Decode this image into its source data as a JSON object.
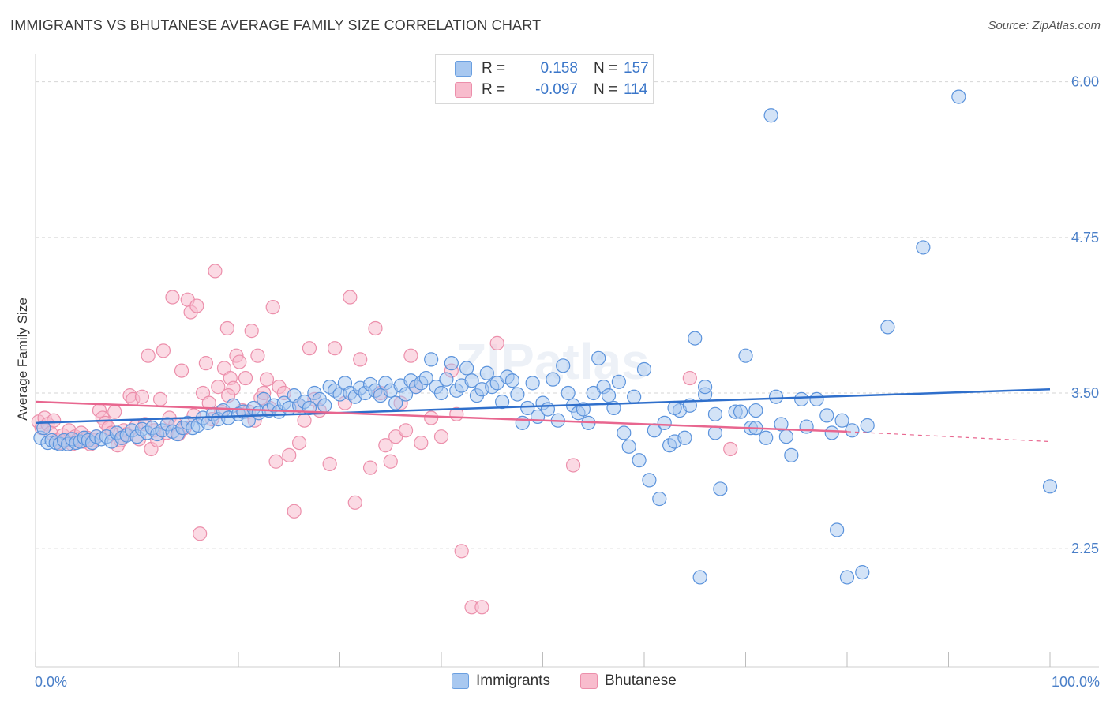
{
  "header": {
    "title": "IMMIGRANTS VS BHUTANESE AVERAGE FAMILY SIZE CORRELATION CHART",
    "source": "Source: ZipAtlas.com"
  },
  "legend": {
    "rows": [
      {
        "r_label": "R =",
        "r_value": "0.158",
        "n_label": "N =",
        "n_value": "157"
      },
      {
        "r_label": "R =",
        "r_value": "-0.097",
        "n_label": "N =",
        "n_value": "114"
      }
    ],
    "bottom": [
      "Immigrants",
      "Bhutanese"
    ]
  },
  "colors": {
    "immigrants_fill": "#a8c8f0",
    "immigrants_stroke": "#5b93dc",
    "immigrants_line": "#2f6fcb",
    "bhutanese_fill": "#f8bccd",
    "bhutanese_stroke": "#ec8fab",
    "bhutanese_line": "#e8668f",
    "tick_color": "#4a7fc8"
  },
  "chart_data": {
    "type": "scatter",
    "title": "IMMIGRANTS VS BHUTANESE AVERAGE FAMILY SIZE CORRELATION CHART",
    "xlabel": "",
    "ylabel": "Average Family Size",
    "xlim": [
      0,
      100
    ],
    "ylim": [
      1.3,
      6.15
    ],
    "x_tick_labels": [
      "0.0%",
      "100.0%"
    ],
    "y_ticks": [
      2.25,
      3.5,
      4.75,
      6.0
    ],
    "y_tick_labels": [
      "2.25",
      "3.50",
      "4.75",
      "6.00"
    ],
    "grid": "horizontal dashed",
    "watermark": "ZIPatlas",
    "series": [
      {
        "name": "Immigrants",
        "r": 0.158,
        "n": 157,
        "trend": {
          "x": [
            0,
            100
          ],
          "y": [
            3.26,
            3.53
          ]
        },
        "points": [
          [
            0.5,
            3.14
          ],
          [
            0.8,
            3.22
          ],
          [
            1.2,
            3.1
          ],
          [
            1.6,
            3.12
          ],
          [
            2.0,
            3.1
          ],
          [
            2.4,
            3.09
          ],
          [
            2.8,
            3.12
          ],
          [
            3.2,
            3.09
          ],
          [
            3.6,
            3.13
          ],
          [
            4.0,
            3.1
          ],
          [
            4.4,
            3.11
          ],
          [
            4.8,
            3.14
          ],
          [
            5.2,
            3.12
          ],
          [
            5.6,
            3.1
          ],
          [
            6.0,
            3.15
          ],
          [
            6.5,
            3.13
          ],
          [
            7.0,
            3.15
          ],
          [
            7.5,
            3.11
          ],
          [
            8.0,
            3.18
          ],
          [
            8.5,
            3.14
          ],
          [
            9.0,
            3.16
          ],
          [
            9.5,
            3.2
          ],
          [
            10.0,
            3.15
          ],
          [
            10.5,
            3.21
          ],
          [
            11.0,
            3.18
          ],
          [
            11.5,
            3.22
          ],
          [
            12.0,
            3.17
          ],
          [
            12.5,
            3.2
          ],
          [
            13.0,
            3.25
          ],
          [
            13.5,
            3.19
          ],
          [
            14.0,
            3.17
          ],
          [
            14.5,
            3.22
          ],
          [
            15.0,
            3.26
          ],
          [
            15.5,
            3.22
          ],
          [
            16.0,
            3.24
          ],
          [
            16.5,
            3.3
          ],
          [
            17.0,
            3.26
          ],
          [
            17.5,
            3.33
          ],
          [
            18.0,
            3.29
          ],
          [
            18.5,
            3.36
          ],
          [
            19.0,
            3.3
          ],
          [
            19.5,
            3.4
          ],
          [
            20.0,
            3.33
          ],
          [
            20.5,
            3.35
          ],
          [
            21.0,
            3.28
          ],
          [
            21.5,
            3.38
          ],
          [
            22.0,
            3.34
          ],
          [
            22.5,
            3.45
          ],
          [
            23.0,
            3.36
          ],
          [
            23.5,
            3.4
          ],
          [
            24.0,
            3.35
          ],
          [
            24.5,
            3.42
          ],
          [
            25.0,
            3.38
          ],
          [
            25.5,
            3.48
          ],
          [
            26.0,
            3.4
          ],
          [
            26.5,
            3.43
          ],
          [
            27.0,
            3.38
          ],
          [
            27.5,
            3.5
          ],
          [
            28.0,
            3.45
          ],
          [
            28.5,
            3.4
          ],
          [
            29.0,
            3.55
          ],
          [
            29.5,
            3.52
          ],
          [
            30.0,
            3.49
          ],
          [
            30.5,
            3.58
          ],
          [
            31.0,
            3.5
          ],
          [
            31.5,
            3.47
          ],
          [
            32.0,
            3.54
          ],
          [
            32.5,
            3.5
          ],
          [
            33.0,
            3.57
          ],
          [
            33.5,
            3.52
          ],
          [
            34.0,
            3.48
          ],
          [
            34.5,
            3.58
          ],
          [
            35.0,
            3.52
          ],
          [
            35.5,
            3.42
          ],
          [
            36.0,
            3.56
          ],
          [
            36.5,
            3.49
          ],
          [
            37.0,
            3.6
          ],
          [
            37.5,
            3.55
          ],
          [
            38.0,
            3.58
          ],
          [
            38.5,
            3.62
          ],
          [
            39.0,
            3.77
          ],
          [
            39.5,
            3.55
          ],
          [
            40.0,
            3.5
          ],
          [
            40.5,
            3.61
          ],
          [
            41.0,
            3.74
          ],
          [
            41.5,
            3.52
          ],
          [
            42.0,
            3.56
          ],
          [
            42.5,
            3.7
          ],
          [
            43.0,
            3.6
          ],
          [
            43.5,
            3.48
          ],
          [
            44.0,
            3.53
          ],
          [
            44.5,
            3.66
          ],
          [
            45.0,
            3.55
          ],
          [
            45.5,
            3.58
          ],
          [
            46.0,
            3.43
          ],
          [
            46.5,
            3.63
          ],
          [
            47.0,
            3.6
          ],
          [
            47.5,
            3.49
          ],
          [
            48.0,
            3.26
          ],
          [
            48.5,
            3.38
          ],
          [
            49.0,
            3.58
          ],
          [
            49.5,
            3.31
          ],
          [
            50.0,
            3.42
          ],
          [
            50.5,
            3.37
          ],
          [
            51.0,
            3.61
          ],
          [
            51.5,
            3.28
          ],
          [
            52.0,
            3.72
          ],
          [
            52.5,
            3.5
          ],
          [
            53.0,
            3.4
          ],
          [
            53.5,
            3.34
          ],
          [
            54.0,
            3.37
          ],
          [
            54.5,
            3.26
          ],
          [
            55.0,
            3.5
          ],
          [
            55.5,
            3.78
          ],
          [
            56.0,
            3.55
          ],
          [
            56.5,
            3.48
          ],
          [
            57.0,
            3.38
          ],
          [
            57.5,
            3.59
          ],
          [
            58.0,
            3.18
          ],
          [
            58.5,
            3.07
          ],
          [
            59.0,
            3.47
          ],
          [
            59.5,
            2.96
          ],
          [
            60.0,
            3.69
          ],
          [
            60.5,
            2.8
          ],
          [
            61.0,
            3.2
          ],
          [
            61.5,
            2.65
          ],
          [
            62.0,
            3.26
          ],
          [
            62.5,
            3.08
          ],
          [
            63.0,
            3.11
          ],
          [
            63.5,
            3.36
          ],
          [
            64.0,
            3.14
          ],
          [
            64.5,
            3.4
          ],
          [
            65.0,
            3.94
          ],
          [
            65.5,
            2.02
          ],
          [
            66.0,
            3.49
          ],
          [
            67.0,
            3.18
          ],
          [
            67.5,
            2.73
          ],
          [
            69.0,
            3.35
          ],
          [
            69.5,
            3.35
          ],
          [
            70.0,
            3.8
          ],
          [
            70.5,
            3.22
          ],
          [
            71.0,
            3.22
          ],
          [
            72.0,
            3.14
          ],
          [
            73.0,
            3.47
          ],
          [
            73.5,
            3.25
          ],
          [
            74.0,
            3.15
          ],
          [
            74.5,
            3.0
          ],
          [
            75.5,
            3.45
          ],
          [
            76.0,
            3.23
          ],
          [
            78.5,
            3.18
          ],
          [
            79.0,
            2.4
          ],
          [
            80.0,
            2.02
          ],
          [
            81.5,
            2.06
          ],
          [
            84.0,
            4.03
          ],
          [
            87.5,
            4.67
          ],
          [
            91.0,
            5.88
          ],
          [
            72.5,
            5.73
          ],
          [
            100.0,
            2.75
          ],
          [
            63.0,
            3.38
          ],
          [
            66.0,
            3.55
          ],
          [
            67.0,
            3.33
          ],
          [
            71.0,
            3.36
          ],
          [
            77.0,
            3.45
          ],
          [
            78.0,
            3.32
          ],
          [
            79.5,
            3.28
          ],
          [
            80.5,
            3.2
          ],
          [
            82.0,
            3.24
          ]
        ]
      },
      {
        "name": "Bhutanese",
        "r": -0.097,
        "n": 114,
        "trend": {
          "x": [
            0,
            80
          ],
          "y": [
            3.43,
            3.19
          ],
          "dashed_to": [
            100,
            3.11
          ]
        },
        "points": [
          [
            0.3,
            3.27
          ],
          [
            0.6,
            3.22
          ],
          [
            0.9,
            3.3
          ],
          [
            1.2,
            3.25
          ],
          [
            1.5,
            3.18
          ],
          [
            1.8,
            3.28
          ],
          [
            2.1,
            3.12
          ],
          [
            2.4,
            3.1
          ],
          [
            2.7,
            3.16
          ],
          [
            3.0,
            3.12
          ],
          [
            3.3,
            3.2
          ],
          [
            3.6,
            3.09
          ],
          [
            3.9,
            3.15
          ],
          [
            4.2,
            3.13
          ],
          [
            4.5,
            3.18
          ],
          [
            4.8,
            3.11
          ],
          [
            5.1,
            3.14
          ],
          [
            5.4,
            3.09
          ],
          [
            5.7,
            3.12
          ],
          [
            6.0,
            3.15
          ],
          [
            6.3,
            3.36
          ],
          [
            6.6,
            3.3
          ],
          [
            6.9,
            3.26
          ],
          [
            7.2,
            3.22
          ],
          [
            7.5,
            3.18
          ],
          [
            7.8,
            3.35
          ],
          [
            8.1,
            3.08
          ],
          [
            8.4,
            3.12
          ],
          [
            8.7,
            3.2
          ],
          [
            9.0,
            3.17
          ],
          [
            9.3,
            3.48
          ],
          [
            9.6,
            3.45
          ],
          [
            9.9,
            3.23
          ],
          [
            10.2,
            3.13
          ],
          [
            10.5,
            3.47
          ],
          [
            10.8,
            3.25
          ],
          [
            11.1,
            3.8
          ],
          [
            11.4,
            3.05
          ],
          [
            11.7,
            3.2
          ],
          [
            12.0,
            3.12
          ],
          [
            12.3,
            3.45
          ],
          [
            12.6,
            3.84
          ],
          [
            12.9,
            3.18
          ],
          [
            13.2,
            3.3
          ],
          [
            13.5,
            4.27
          ],
          [
            13.8,
            3.25
          ],
          [
            14.1,
            3.17
          ],
          [
            14.4,
            3.68
          ],
          [
            14.7,
            3.22
          ],
          [
            15.0,
            4.25
          ],
          [
            15.3,
            4.15
          ],
          [
            15.6,
            3.32
          ],
          [
            15.9,
            4.2
          ],
          [
            16.2,
            2.37
          ],
          [
            16.5,
            3.5
          ],
          [
            16.8,
            3.74
          ],
          [
            17.1,
            3.42
          ],
          [
            17.4,
            3.29
          ],
          [
            17.7,
            4.48
          ],
          [
            18.0,
            3.55
          ],
          [
            18.3,
            3.35
          ],
          [
            18.6,
            3.7
          ],
          [
            18.9,
            4.02
          ],
          [
            19.2,
            3.62
          ],
          [
            19.5,
            3.54
          ],
          [
            19.8,
            3.8
          ],
          [
            20.1,
            3.75
          ],
          [
            20.4,
            3.36
          ],
          [
            20.7,
            3.62
          ],
          [
            21.0,
            3.35
          ],
          [
            21.3,
            4.0
          ],
          [
            21.6,
            3.28
          ],
          [
            21.9,
            3.8
          ],
          [
            22.2,
            3.46
          ],
          [
            22.5,
            3.5
          ],
          [
            22.8,
            3.61
          ],
          [
            23.1,
            3.38
          ],
          [
            23.4,
            4.19
          ],
          [
            23.7,
            2.95
          ],
          [
            24.0,
            3.55
          ],
          [
            24.5,
            3.5
          ],
          [
            25.0,
            3.0
          ],
          [
            25.5,
            2.55
          ],
          [
            26.0,
            3.4
          ],
          [
            26.5,
            3.28
          ],
          [
            27.0,
            3.86
          ],
          [
            27.5,
            3.45
          ],
          [
            28.0,
            3.36
          ],
          [
            29.0,
            2.93
          ],
          [
            29.5,
            3.86
          ],
          [
            30.5,
            3.42
          ],
          [
            31.0,
            4.27
          ],
          [
            31.5,
            2.62
          ],
          [
            32.0,
            3.77
          ],
          [
            33.0,
            2.9
          ],
          [
            33.5,
            4.02
          ],
          [
            34.0,
            3.5
          ],
          [
            34.5,
            3.08
          ],
          [
            35.0,
            2.95
          ],
          [
            35.5,
            3.15
          ],
          [
            36.0,
            3.42
          ],
          [
            37.0,
            3.8
          ],
          [
            37.5,
            3.55
          ],
          [
            38.0,
            3.1
          ],
          [
            39.0,
            3.3
          ],
          [
            40.0,
            3.15
          ],
          [
            41.0,
            3.68
          ],
          [
            41.5,
            3.33
          ],
          [
            42.0,
            2.23
          ],
          [
            43.0,
            1.78
          ],
          [
            44.0,
            1.78
          ],
          [
            45.5,
            3.9
          ],
          [
            53.0,
            2.92
          ],
          [
            64.5,
            3.62
          ],
          [
            68.5,
            3.05
          ],
          [
            36.5,
            3.2
          ],
          [
            26.0,
            3.1
          ],
          [
            19.0,
            3.48
          ]
        ]
      }
    ]
  }
}
